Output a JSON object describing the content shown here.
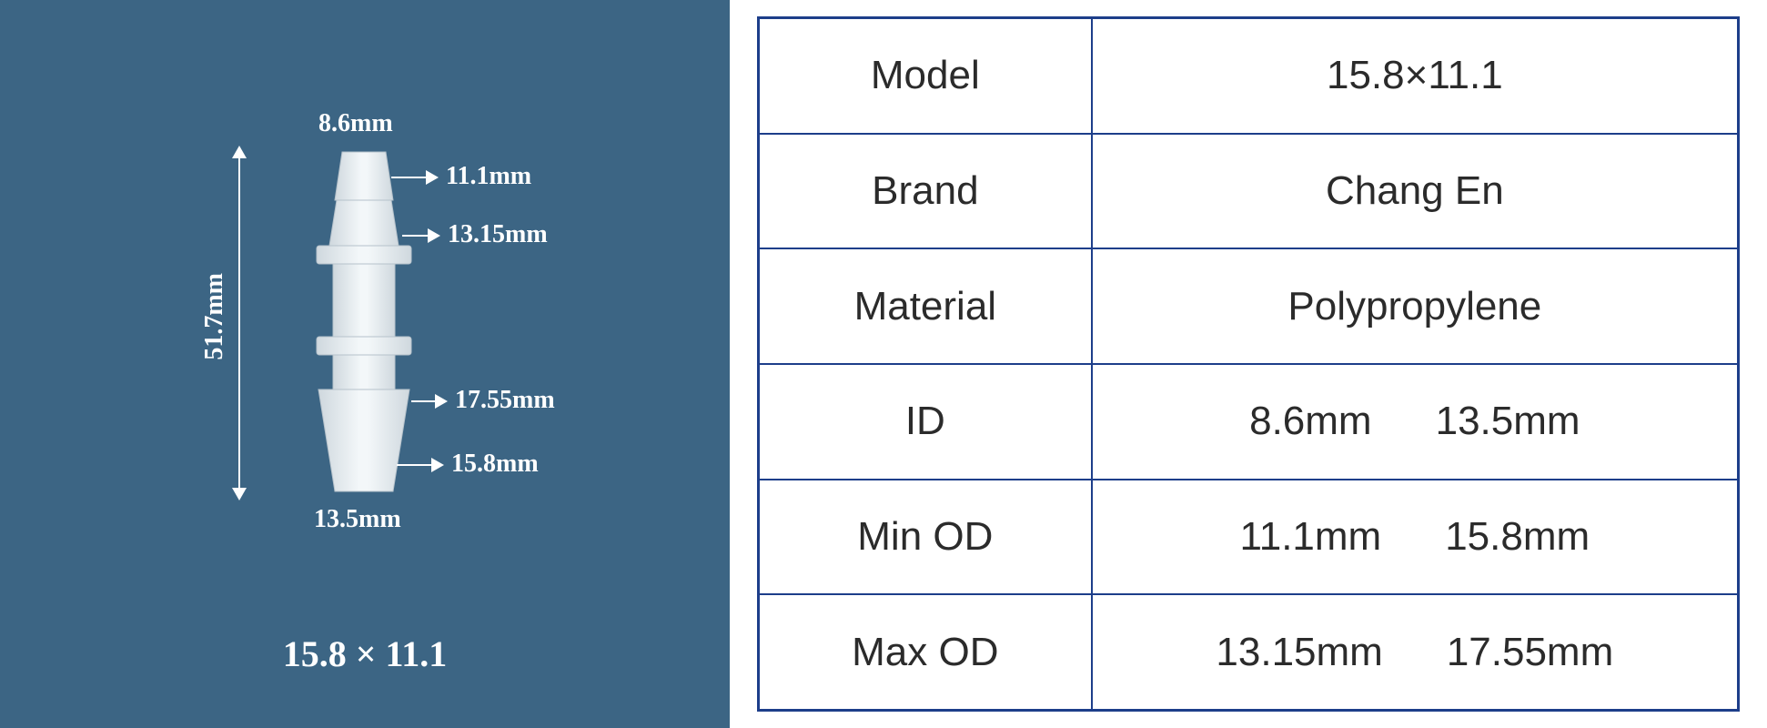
{
  "diagram": {
    "background_color": "#3c6584",
    "label_color": "#ffffff",
    "caption": "15.8 × 11.1",
    "connector_fill": "#e4e9ec",
    "connector_stroke": "#b6c2cb",
    "dimensions": {
      "top": {
        "value": "8.6mm"
      },
      "side_upper1": {
        "value": "11.1mm"
      },
      "side_upper2": {
        "value": "13.15mm"
      },
      "side_lower1": {
        "value": "17.55mm"
      },
      "side_lower2": {
        "value": "15.8mm"
      },
      "bottom": {
        "value": "13.5mm"
      },
      "height": {
        "value": "51.7mm"
      }
    }
  },
  "spec_table": {
    "border_color": "#1d3e8a",
    "text_color": "#2b2b2b",
    "font_size_pt": 33,
    "rows": [
      {
        "key": "Model",
        "value": "15.8×11.1"
      },
      {
        "key": "Brand",
        "value": "Chang En"
      },
      {
        "key": "Material",
        "value": "Polypropylene"
      },
      {
        "key": "ID",
        "value_pair": [
          "8.6mm",
          "13.5mm"
        ]
      },
      {
        "key": "Min OD",
        "value_pair": [
          "11.1mm",
          "15.8mm"
        ]
      },
      {
        "key": "Max OD",
        "value_pair": [
          "13.15mm",
          "17.55mm"
        ]
      }
    ]
  }
}
